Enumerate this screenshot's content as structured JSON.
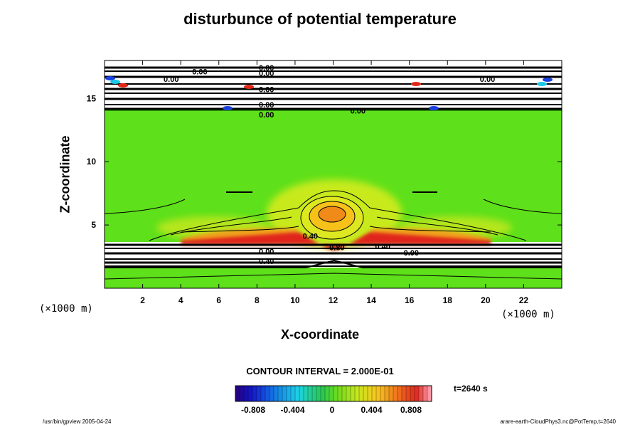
{
  "chart_data": {
    "type": "heatmap",
    "title": "disturbunce of potential temperature",
    "xlabel": "X-coordinate",
    "ylabel": "Z-coordinate",
    "x_unit": "(×1000 m)",
    "y_unit": "(×1000 m)",
    "xlim": [
      0,
      24
    ],
    "ylim": [
      0,
      18
    ],
    "x_ticks": [
      2,
      4,
      6,
      8,
      10,
      12,
      14,
      16,
      18,
      20,
      22
    ],
    "y_ticks": [
      5,
      10,
      15
    ],
    "contour_interval": "CONTOUR INTERVAL = 2.000E-01",
    "time_label": "t=2640 s",
    "colorbar": {
      "min": -0.808,
      "max": 0.808,
      "tick_values": [
        -0.808,
        -0.404,
        0,
        0.404,
        0.808
      ],
      "tick_labels": [
        "-0.808",
        "-0.404",
        "0",
        "0.404",
        "0.808"
      ]
    },
    "contour_labels": [
      {
        "text": "0.40",
        "x": 10.8,
        "z": 3.9
      },
      {
        "text": "0.80",
        "x": 12.2,
        "z": 3.0
      },
      {
        "text": "0.40",
        "x": 14.6,
        "z": 3.1
      },
      {
        "text": "0.00",
        "x": 16.1,
        "z": 2.6
      },
      {
        "text": "0.00",
        "x": 8.5,
        "z": 2.7
      },
      {
        "text": "0.40",
        "x": 8.5,
        "z": 1.9
      },
      {
        "text": "0.00",
        "x": 8.5,
        "z": 13.5
      },
      {
        "text": "0.00",
        "x": 13.3,
        "z": 13.8
      },
      {
        "text": "0.00",
        "x": 8.5,
        "z": 14.3
      },
      {
        "text": "0.00",
        "x": 8.5,
        "z": 15.5
      },
      {
        "text": "0.00",
        "x": 8.5,
        "z": 17.2
      },
      {
        "text": "0.00",
        "x": 8.5,
        "z": 16.8
      },
      {
        "text": "0.00",
        "x": 5.0,
        "z": 16.9
      },
      {
        "text": "0.00",
        "x": 3.5,
        "z": 16.3
      },
      {
        "text": "0.00",
        "x": 20.1,
        "z": 16.3
      }
    ]
  },
  "footer": {
    "left": "/usr/bin/gpview 2005-04-24",
    "right": "arare-earth-CloudPhys3.nc@PotTemp,t=2640"
  }
}
